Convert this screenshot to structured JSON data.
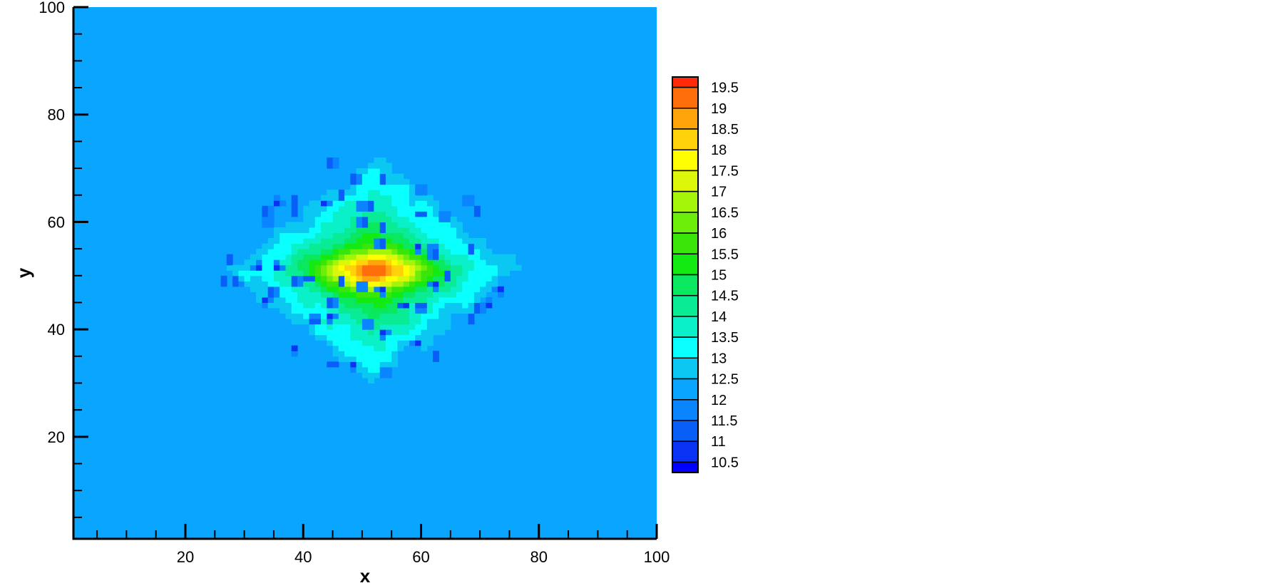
{
  "chart_data": {
    "type": "heatmap",
    "subtype": "filled-contour",
    "xlabel": "x",
    "ylabel": "y",
    "xlim": [
      1,
      100
    ],
    "ylim": [
      1,
      100
    ],
    "x_ticks": [
      20,
      40,
      60,
      80,
      100
    ],
    "y_ticks": [
      20,
      40,
      60,
      80,
      100
    ],
    "minor_tick_step": 5,
    "grid": false,
    "background_value": 12.2,
    "peak": {
      "x": 52,
      "y": 51,
      "value": 19.7
    },
    "region_extent": {
      "x": [
        26,
        77
      ],
      "y": [
        30,
        73
      ]
    },
    "low_spots_value": 10.4,
    "low_spots": [
      [
        44.7,
        71
      ],
      [
        48.8,
        68
      ],
      [
        53.4,
        68
      ],
      [
        60,
        66
      ],
      [
        68,
        64
      ],
      [
        69.4,
        62
      ],
      [
        38.5,
        64
      ],
      [
        35.6,
        63.6
      ],
      [
        33.8,
        62
      ],
      [
        34,
        60
      ],
      [
        38.5,
        62
      ],
      [
        43.7,
        63.5
      ],
      [
        46.6,
        65
      ],
      [
        50.3,
        60
      ],
      [
        53.6,
        59
      ],
      [
        50,
        63
      ],
      [
        51.5,
        63
      ],
      [
        59.9,
        61.4
      ],
      [
        64,
        61
      ],
      [
        68.6,
        55
      ],
      [
        62,
        55
      ],
      [
        62.3,
        54
      ],
      [
        59.5,
        55.2
      ],
      [
        53.2,
        56
      ],
      [
        32.2,
        51.7
      ],
      [
        35.6,
        51.7
      ],
      [
        27.5,
        53
      ],
      [
        26.5,
        49
      ],
      [
        28.7,
        48.9
      ],
      [
        38.9,
        49
      ],
      [
        41,
        49.7
      ],
      [
        34.7,
        47
      ],
      [
        33.6,
        45.4
      ],
      [
        46.6,
        49
      ],
      [
        44.8,
        45
      ],
      [
        50,
        48
      ],
      [
        53.4,
        47.2
      ],
      [
        57.2,
        44.5
      ],
      [
        59.9,
        44.2
      ],
      [
        64.6,
        50
      ],
      [
        62.3,
        48.3
      ],
      [
        69.8,
        44
      ],
      [
        71.3,
        44.8
      ],
      [
        73.4,
        47.3
      ],
      [
        68.5,
        42
      ],
      [
        51,
        41
      ],
      [
        53.6,
        39.4
      ],
      [
        59.4,
        37.5
      ],
      [
        62.5,
        35
      ],
      [
        45,
        33.7
      ],
      [
        48.5,
        33.2
      ],
      [
        54,
        32
      ],
      [
        38.5,
        36.2
      ],
      [
        41.9,
        41.8
      ],
      [
        44.8,
        42.3
      ]
    ],
    "legend": {
      "placement": "right",
      "levels": [
        19.5,
        19,
        18.5,
        18,
        17.5,
        17,
        16.5,
        16,
        15.5,
        15,
        14.5,
        14,
        13.5,
        13,
        12.5,
        12,
        11.5,
        11,
        10.5
      ],
      "level_labels": [
        "19.5",
        "19",
        "18.5",
        "18",
        "17.5",
        "17",
        "16.5",
        "16",
        "15.5",
        "15",
        "14.5",
        "14",
        "13.5",
        "13",
        "12.5",
        "12",
        "11.5",
        "11",
        "10.5"
      ],
      "colors_low_to_high": [
        "#0000ff",
        "#0a32f5",
        "#0a5ef8",
        "#0a84ff",
        "#0aa5ff",
        "#0ac8f2",
        "#0affff",
        "#0af0c8",
        "#0aeb96",
        "#0ae860",
        "#12ea12",
        "#3ae60a",
        "#6cee0a",
        "#a4f50a",
        "#dcf70a",
        "#ffff00",
        "#ffd20a",
        "#ffa50a",
        "#ff6e0a",
        "#ff2a0a"
      ]
    }
  }
}
